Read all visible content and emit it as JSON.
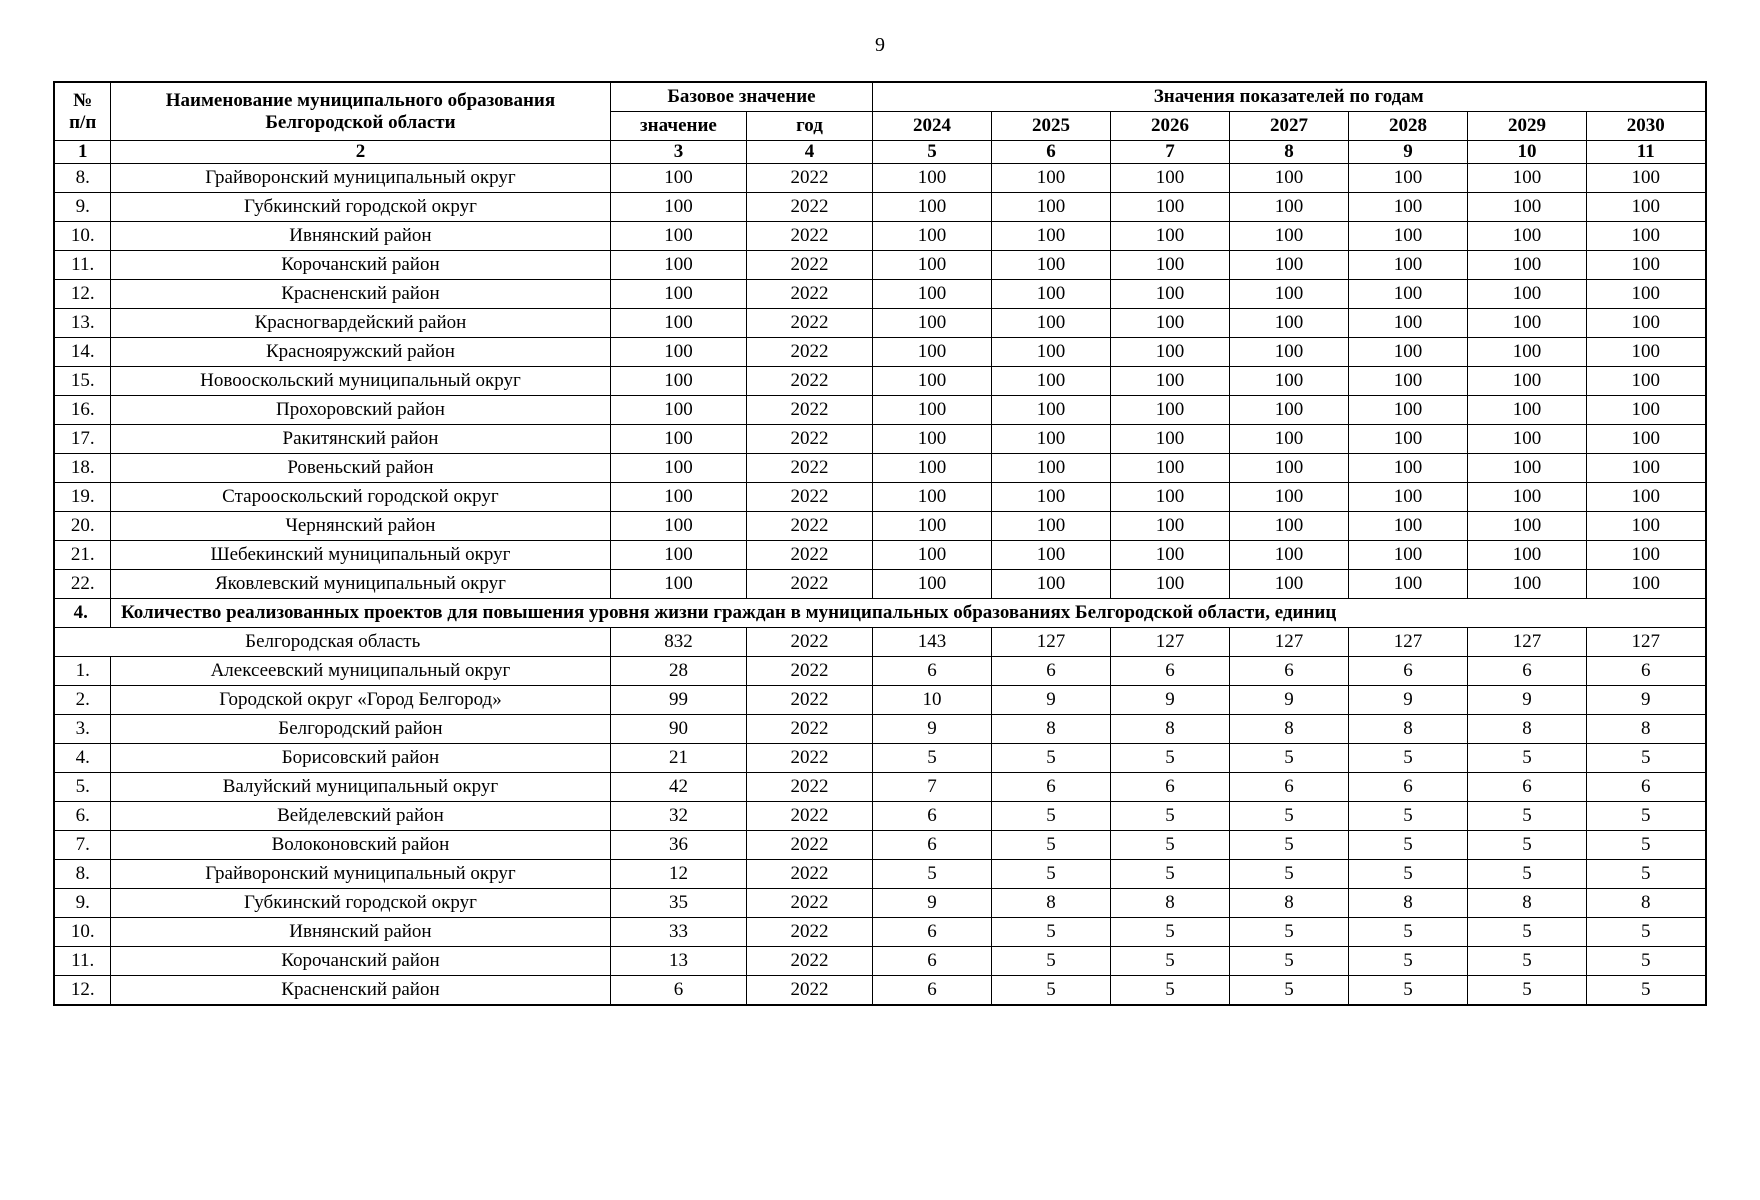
{
  "page": {
    "number": "9"
  },
  "table": {
    "header": {
      "num_col": "№\nп/п",
      "name_col": "Наименование муниципального образования\nБелгородской области",
      "base_group": "Базовое значение",
      "base_value": "значение",
      "base_year": "год",
      "years_group": "Значения показателей по годам",
      "years": [
        "2024",
        "2025",
        "2026",
        "2027",
        "2028",
        "2029",
        "2030"
      ],
      "col_indices": [
        "1",
        "2",
        "3",
        "4",
        "5",
        "6",
        "7",
        "8",
        "9",
        "10",
        "11"
      ]
    },
    "section1_rows": [
      {
        "num": "8.",
        "name": "Грайворонский муниципальный округ",
        "base": "100",
        "year": "2022",
        "values": [
          "100",
          "100",
          "100",
          "100",
          "100",
          "100",
          "100"
        ]
      },
      {
        "num": "9.",
        "name": "Губкинский городской округ",
        "base": "100",
        "year": "2022",
        "values": [
          "100",
          "100",
          "100",
          "100",
          "100",
          "100",
          "100"
        ]
      },
      {
        "num": "10.",
        "name": "Ивнянский район",
        "base": "100",
        "year": "2022",
        "values": [
          "100",
          "100",
          "100",
          "100",
          "100",
          "100",
          "100"
        ]
      },
      {
        "num": "11.",
        "name": "Корочанский район",
        "base": "100",
        "year": "2022",
        "values": [
          "100",
          "100",
          "100",
          "100",
          "100",
          "100",
          "100"
        ]
      },
      {
        "num": "12.",
        "name": "Красненский район",
        "base": "100",
        "year": "2022",
        "values": [
          "100",
          "100",
          "100",
          "100",
          "100",
          "100",
          "100"
        ]
      },
      {
        "num": "13.",
        "name": "Красногвардейский район",
        "base": "100",
        "year": "2022",
        "values": [
          "100",
          "100",
          "100",
          "100",
          "100",
          "100",
          "100"
        ]
      },
      {
        "num": "14.",
        "name": "Краснояружский район",
        "base": "100",
        "year": "2022",
        "values": [
          "100",
          "100",
          "100",
          "100",
          "100",
          "100",
          "100"
        ]
      },
      {
        "num": "15.",
        "name": "Новооскольский муниципальный округ",
        "base": "100",
        "year": "2022",
        "values": [
          "100",
          "100",
          "100",
          "100",
          "100",
          "100",
          "100"
        ]
      },
      {
        "num": "16.",
        "name": "Прохоровский район",
        "base": "100",
        "year": "2022",
        "values": [
          "100",
          "100",
          "100",
          "100",
          "100",
          "100",
          "100"
        ]
      },
      {
        "num": "17.",
        "name": "Ракитянский район",
        "base": "100",
        "year": "2022",
        "values": [
          "100",
          "100",
          "100",
          "100",
          "100",
          "100",
          "100"
        ]
      },
      {
        "num": "18.",
        "name": "Ровеньский район",
        "base": "100",
        "year": "2022",
        "values": [
          "100",
          "100",
          "100",
          "100",
          "100",
          "100",
          "100"
        ]
      },
      {
        "num": "19.",
        "name": "Старооскольский городской округ",
        "base": "100",
        "year": "2022",
        "values": [
          "100",
          "100",
          "100",
          "100",
          "100",
          "100",
          "100"
        ]
      },
      {
        "num": "20.",
        "name": "Чернянский район",
        "base": "100",
        "year": "2022",
        "values": [
          "100",
          "100",
          "100",
          "100",
          "100",
          "100",
          "100"
        ]
      },
      {
        "num": "21.",
        "name": "Шебекинский муниципальный округ",
        "base": "100",
        "year": "2022",
        "values": [
          "100",
          "100",
          "100",
          "100",
          "100",
          "100",
          "100"
        ]
      },
      {
        "num": "22.",
        "name": "Яковлевский муниципальный округ",
        "base": "100",
        "year": "2022",
        "values": [
          "100",
          "100",
          "100",
          "100",
          "100",
          "100",
          "100"
        ]
      }
    ],
    "section_header": {
      "num": "4.",
      "title": "Количество реализованных проектов для повышения уровня жизни граждан в муниципальных образованиях Белгородской области, единиц"
    },
    "region_row": {
      "name": "Белгородская область",
      "base": "832",
      "year": "2022",
      "values": [
        "143",
        "127",
        "127",
        "127",
        "127",
        "127",
        "127"
      ]
    },
    "section2_rows": [
      {
        "num": "1.",
        "name": "Алексеевский муниципальный округ",
        "base": "28",
        "year": "2022",
        "values": [
          "6",
          "6",
          "6",
          "6",
          "6",
          "6",
          "6"
        ]
      },
      {
        "num": "2.",
        "name": "Городской округ «Город Белгород»",
        "base": "99",
        "year": "2022",
        "values": [
          "10",
          "9",
          "9",
          "9",
          "9",
          "9",
          "9"
        ]
      },
      {
        "num": "3.",
        "name": "Белгородский район",
        "base": "90",
        "year": "2022",
        "values": [
          "9",
          "8",
          "8",
          "8",
          "8",
          "8",
          "8"
        ]
      },
      {
        "num": "4.",
        "name": "Борисовский район",
        "base": "21",
        "year": "2022",
        "values": [
          "5",
          "5",
          "5",
          "5",
          "5",
          "5",
          "5"
        ]
      },
      {
        "num": "5.",
        "name": "Валуйский муниципальный округ",
        "base": "42",
        "year": "2022",
        "values": [
          "7",
          "6",
          "6",
          "6",
          "6",
          "6",
          "6"
        ]
      },
      {
        "num": "6.",
        "name": "Вейделевский район",
        "base": "32",
        "year": "2022",
        "values": [
          "6",
          "5",
          "5",
          "5",
          "5",
          "5",
          "5"
        ]
      },
      {
        "num": "7.",
        "name": "Волоконовский район",
        "base": "36",
        "year": "2022",
        "values": [
          "6",
          "5",
          "5",
          "5",
          "5",
          "5",
          "5"
        ]
      },
      {
        "num": "8.",
        "name": "Грайворонский муниципальный округ",
        "base": "12",
        "year": "2022",
        "values": [
          "5",
          "5",
          "5",
          "5",
          "5",
          "5",
          "5"
        ]
      },
      {
        "num": "9.",
        "name": "Губкинский городской округ",
        "base": "35",
        "year": "2022",
        "values": [
          "9",
          "8",
          "8",
          "8",
          "8",
          "8",
          "8"
        ]
      },
      {
        "num": "10.",
        "name": "Ивнянский район",
        "base": "33",
        "year": "2022",
        "values": [
          "6",
          "5",
          "5",
          "5",
          "5",
          "5",
          "5"
        ]
      },
      {
        "num": "11.",
        "name": "Корочанский район",
        "base": "13",
        "year": "2022",
        "values": [
          "6",
          "5",
          "5",
          "5",
          "5",
          "5",
          "5"
        ]
      },
      {
        "num": "12.",
        "name": "Красненский район",
        "base": "6",
        "year": "2022",
        "values": [
          "6",
          "5",
          "5",
          "5",
          "5",
          "5",
          "5"
        ]
      }
    ]
  }
}
